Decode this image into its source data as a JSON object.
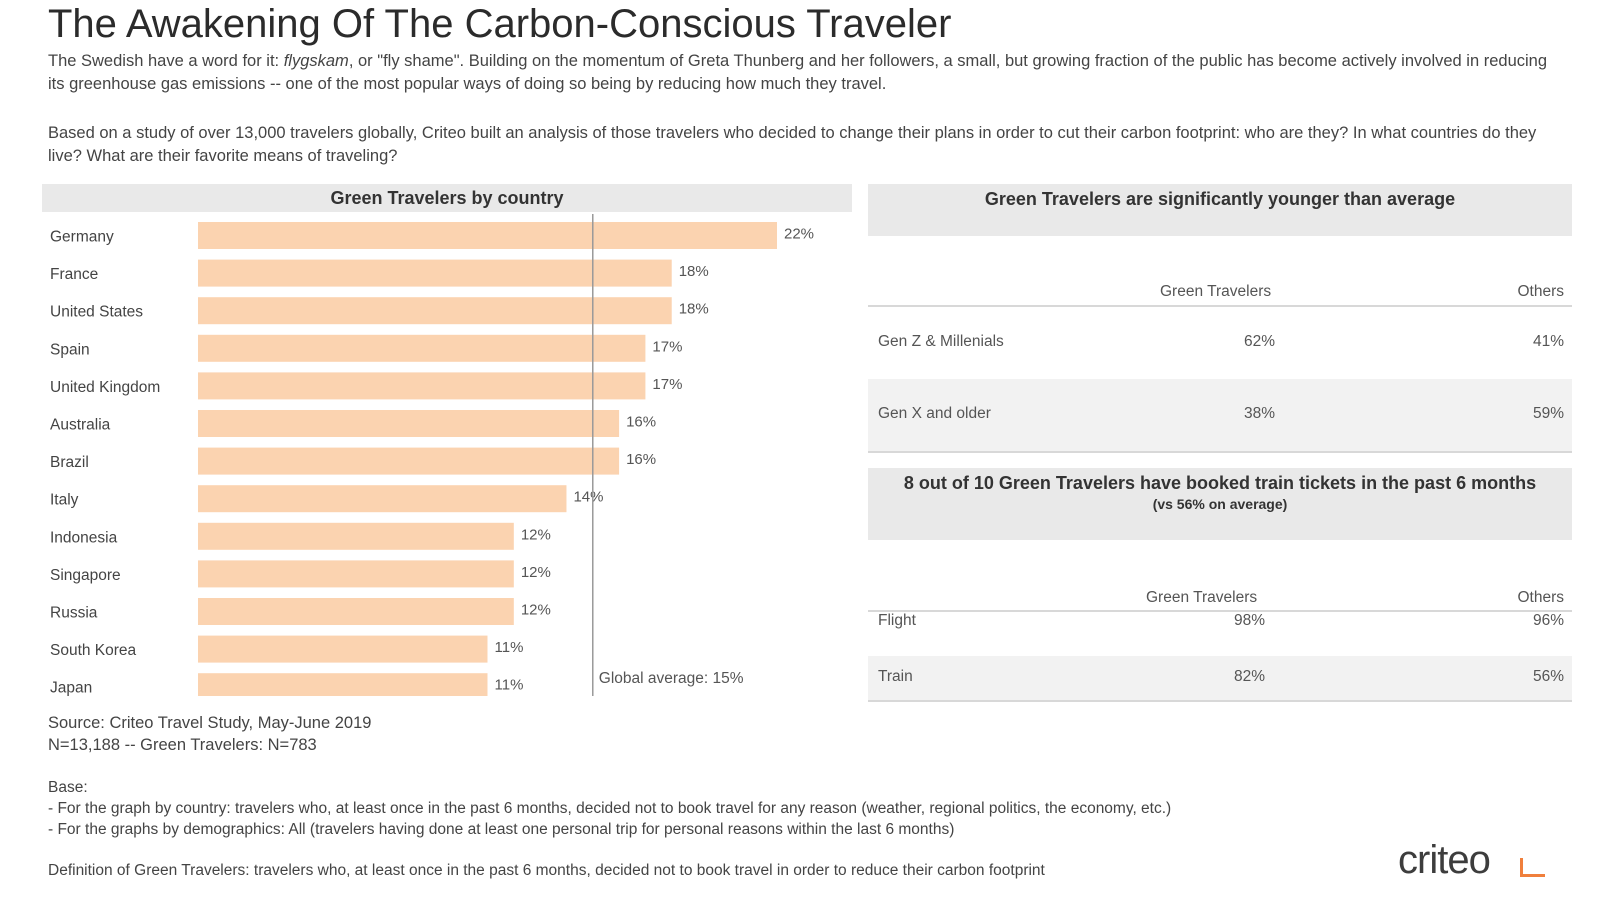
{
  "title": "The Awakening Of The Carbon-Conscious Traveler",
  "intro": {
    "p1_prefix": "The Swedish have a word for it: ",
    "p1_em": "flygskam",
    "p1_suffix": ", or \"fly shame\". Building on the momentum of Greta Thunberg and her followers, a small, but growing fraction of the public has become actively involved in reducing its greenhouse gas emissions -- one of the most popular ways of doing so being by reducing how much they travel.",
    "p2": "Based on a study of over 13,000 travelers globally, Criteo built an analysis of those travelers who decided to change their plans in order to cut their carbon footprint: who are they? In what countries do they live? What are their favorite means of traveling?"
  },
  "chart_data": [
    {
      "type": "bar",
      "orientation": "horizontal",
      "title": "Green Travelers by country",
      "categories": [
        "Germany",
        "France",
        "United States",
        "Spain",
        "United Kingdom",
        "Australia",
        "Brazil",
        "Italy",
        "Indonesia",
        "Singapore",
        "Russia",
        "South Korea",
        "Japan"
      ],
      "values": [
        22,
        18,
        18,
        17,
        17,
        16,
        16,
        14,
        12,
        12,
        12,
        11,
        11
      ],
      "value_labels": [
        "22%",
        "18%",
        "18%",
        "17%",
        "17%",
        "16%",
        "16%",
        "14%",
        "12%",
        "12%",
        "12%",
        "11%",
        "11%"
      ],
      "reference_line": {
        "value": 15,
        "label": "Global average: 15%"
      },
      "xlim": [
        0,
        22
      ],
      "bar_color": "#fbd3b0",
      "line_color": "#999999"
    },
    {
      "type": "table",
      "title": "Green Travelers are significantly younger than average",
      "columns": [
        "",
        "Green Travelers",
        "Others"
      ],
      "rows": [
        [
          "Gen Z & Millenials",
          "62%",
          "41%"
        ],
        [
          "Gen X and older",
          "38%",
          "59%"
        ]
      ]
    },
    {
      "type": "table",
      "title": "8 out of 10 Green Travelers have booked train tickets in the past 6 months",
      "subtitle": "(vs 56% on average)",
      "columns": [
        "",
        "Green Travelers",
        "Others"
      ],
      "rows": [
        [
          "Flight",
          "98%",
          "96%"
        ],
        [
          "Train",
          "82%",
          "56%"
        ]
      ]
    }
  ],
  "footer": {
    "source": "Source: Criteo Travel Study, May-June 2019",
    "sample": "N=13,188 -- Green Travelers: N=783",
    "base_title": "Base:",
    "base_1": "- For the graph by country: travelers who, at least once in the past 6 months, decided not to book travel for any reason (weather, regional politics, the economy, etc.)",
    "base_2": "- For the graphs by demographics: All (travelers having done at least one personal trip for personal reasons within the last 6 months)",
    "definition": "Definition of Green Travelers: travelers who, at least once in the past 6 months, decided not to book travel in order to reduce their carbon footprint",
    "logo": "criteo"
  }
}
